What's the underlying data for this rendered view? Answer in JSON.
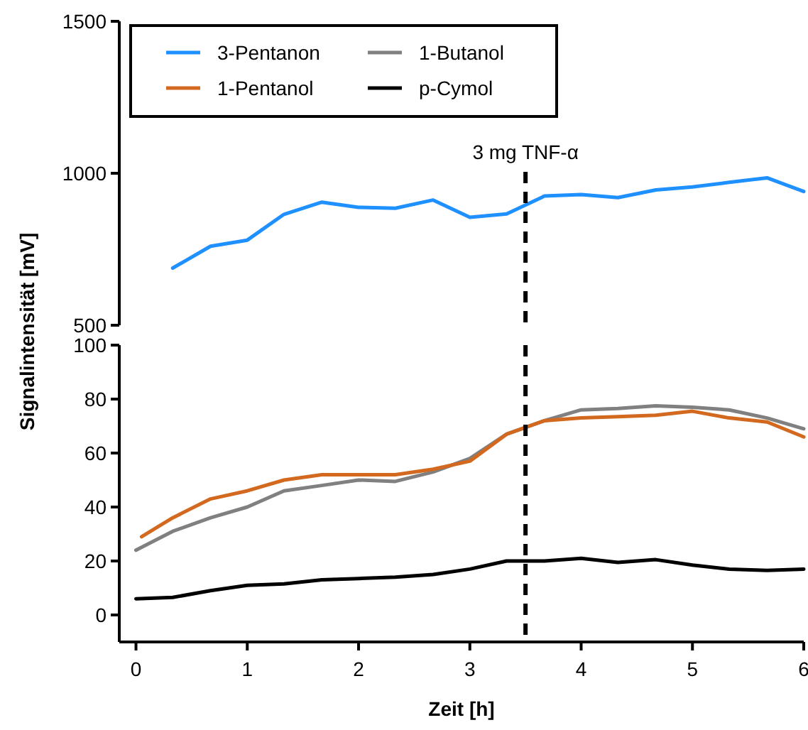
{
  "chart_data": [
    {
      "type": "line",
      "ylabel": "Signalintensität [mV]",
      "xlim": [
        -0.15,
        6
      ],
      "ylim": [
        500,
        1500
      ],
      "yticks": [
        500,
        1000,
        1500
      ],
      "tick_labels": "y",
      "legend": "top left",
      "grid": false,
      "line_style": "solid",
      "marker": "none",
      "series": [
        {
          "name": "3-Pentanon",
          "color": "#1e90ff",
          "x": [
            0.33,
            0.67,
            1,
            1.33,
            1.67,
            2,
            2.33,
            2.67,
            3,
            3.33,
            3.67,
            4,
            4.33,
            4.67,
            5,
            5.33,
            5.67,
            6
          ],
          "values": [
            688,
            760,
            780,
            865,
            905,
            888,
            885,
            912,
            855,
            866,
            925,
            930,
            920,
            945,
            955,
            970,
            985,
            940
          ]
        },
        {
          "name": "1-Pentanol",
          "color": "#d2691e"
        },
        {
          "name": "1-Butanol",
          "color": "#808080"
        },
        {
          "name": "p-Cymol",
          "color": "#000000"
        }
      ],
      "ref_lines": [
        {
          "axis": "x",
          "value": 3.5,
          "label": "3 mg TNF-α",
          "color": "#000000",
          "line_style": "dashed"
        }
      ]
    },
    {
      "type": "line",
      "xlabel": "Zeit [h]",
      "xlim": [
        -0.15,
        6
      ],
      "xticks": [
        0,
        1,
        2,
        3,
        4,
        5,
        6
      ],
      "ylim": [
        -10,
        100
      ],
      "yticks": [
        0,
        20,
        40,
        60,
        80,
        100
      ],
      "legend": false,
      "grid": false,
      "line_style": "solid",
      "marker": "none",
      "series": [
        {
          "color": "#808080",
          "x": [
            0,
            0.33,
            0.67,
            1,
            1.33,
            1.67,
            2,
            2.33,
            2.67,
            3,
            3.33,
            3.67,
            4,
            4.33,
            4.67,
            5,
            5.33,
            5.67,
            6
          ],
          "values": [
            24,
            31,
            36,
            40,
            46,
            48,
            50,
            49.5,
            53,
            58,
            67,
            72,
            76,
            76.5,
            77.5,
            77,
            76,
            73,
            69
          ]
        },
        {
          "color": "#d2691e",
          "x": [
            0.05,
            0.33,
            0.67,
            1,
            1.33,
            1.67,
            2,
            2.33,
            2.67,
            3,
            3.33,
            3.67,
            4,
            4.33,
            4.67,
            5,
            5.33,
            5.67,
            6
          ],
          "values": [
            29,
            36,
            43,
            46,
            50,
            52,
            52,
            52,
            54,
            57,
            67,
            72,
            73,
            73.5,
            74,
            75.5,
            73,
            71.5,
            66
          ]
        },
        {
          "color": "#000000",
          "x": [
            0,
            0.33,
            0.67,
            1,
            1.33,
            1.67,
            2,
            2.33,
            2.67,
            3,
            3.33,
            3.67,
            4,
            4.33,
            4.67,
            5,
            5.33,
            5.67,
            6
          ],
          "values": [
            6,
            6.5,
            9,
            11,
            11.5,
            13,
            13.5,
            14,
            15,
            17,
            20,
            20,
            21,
            19.5,
            20.5,
            18.5,
            17,
            16.5,
            17
          ]
        }
      ],
      "ref_lines": [
        {
          "axis": "x",
          "value": 3.5,
          "color": "#000000",
          "line_style": "dashed"
        }
      ]
    }
  ]
}
